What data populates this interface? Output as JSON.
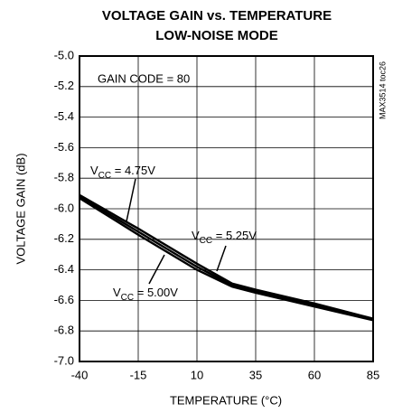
{
  "chart_data": {
    "type": "line",
    "title": "VOLTAGE GAIN vs. TEMPERATURE",
    "subtitle": "LOW-NOISE MODE",
    "x_label": "TEMPERATURE (°C)",
    "y_label": "VOLTAGE GAIN (dB)",
    "annotation": "GAIN CODE = 80",
    "side_note": "MAX3514 toc26",
    "x": [
      -40,
      -15,
      10,
      25,
      35,
      60,
      85
    ],
    "series": [
      {
        "name": "VCC = 4.75V",
        "color": "#000000",
        "values": [
          -5.91,
          -6.13,
          -6.36,
          -6.49,
          -6.53,
          -6.62,
          -6.72
        ]
      },
      {
        "name": "VCC = 5.00V",
        "color": "#000000",
        "values": [
          -5.92,
          -6.15,
          -6.38,
          -6.5,
          -6.54,
          -6.63,
          -6.72
        ]
      },
      {
        "name": "VCC = 5.25V",
        "color": "#000000",
        "values": [
          -5.93,
          -6.17,
          -6.4,
          -6.51,
          -6.55,
          -6.64,
          -6.73
        ]
      }
    ],
    "xlim": [
      -40,
      85
    ],
    "xticks": [
      -40,
      -15,
      10,
      35,
      60,
      85
    ],
    "ylim": [
      -7,
      -5
    ],
    "yticks": [
      {
        "value": -5,
        "label": "-5.0"
      },
      {
        "value": -5.2,
        "label": "-5.2"
      },
      {
        "value": -5.4,
        "label": "-5.4"
      },
      {
        "value": -5.6,
        "label": "-5.6"
      },
      {
        "value": -5.8,
        "label": "-5.8"
      },
      {
        "value": -6,
        "label": "-6.0"
      },
      {
        "value": -6.2,
        "label": "-6.2"
      },
      {
        "value": -6.4,
        "label": "-6.4"
      },
      {
        "value": -6.6,
        "label": "-6.6"
      },
      {
        "value": -6.8,
        "label": "-6.8"
      },
      {
        "value": -7,
        "label": "-7.0"
      }
    ],
    "grid": true
  }
}
